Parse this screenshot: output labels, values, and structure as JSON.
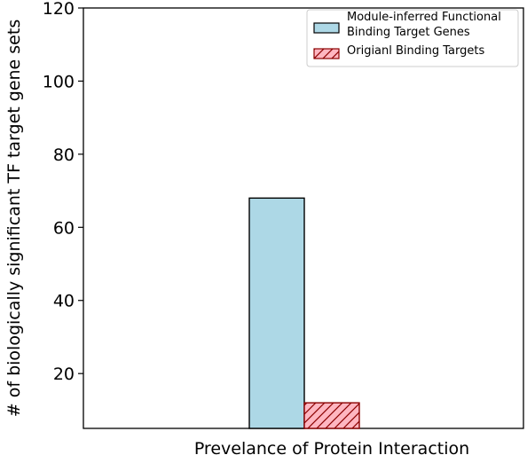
{
  "chart_data": {
    "type": "bar",
    "categories": [
      ""
    ],
    "series": [
      {
        "name": "Module-inferred Functional Binding Target Genes",
        "label_lines": [
          "Module-inferred Functional",
          "Binding Target Genes"
        ],
        "values": [
          68
        ],
        "color": "#add8e6",
        "hatch": false
      },
      {
        "name": "Origianl Binding Targets",
        "label_lines": [
          "Origianl Binding Targets"
        ],
        "values": [
          12
        ],
        "color": "#ffb6c1",
        "hatch": true,
        "hatch_color": "#8b0000"
      }
    ],
    "title": "",
    "xlabel": "Prevelance of Protein Interaction",
    "ylabel": "# of biologically significant TF target gene sets",
    "ylim": [
      5,
      120
    ],
    "yticks": [
      20,
      40,
      60,
      80,
      100,
      120
    ],
    "grid": false,
    "legend_position": "top-right"
  }
}
